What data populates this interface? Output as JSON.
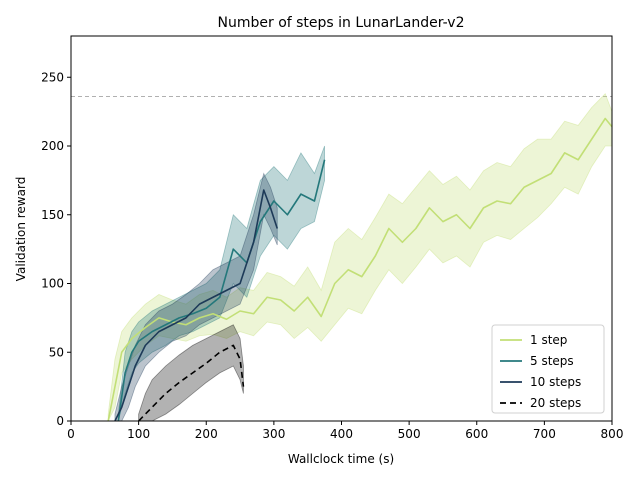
{
  "chart_data": {
    "type": "line",
    "title": "Number of steps in LunarLander-v2",
    "xlabel": "Wallclock time (s)",
    "ylabel": "Validation reward",
    "xlim": [
      0,
      800
    ],
    "ylim": [
      0,
      280
    ],
    "xticks": [
      0,
      100,
      200,
      300,
      400,
      500,
      600,
      700,
      800
    ],
    "yticks": [
      0,
      50,
      100,
      150,
      200,
      250
    ],
    "reference_line": {
      "y": 236,
      "style": "dashed",
      "color": "#b0b0b0"
    },
    "legend_position": "lower-right",
    "series": [
      {
        "name": "1 step",
        "color": "#c2df76",
        "dash": "",
        "x": [
          55,
          65,
          75,
          90,
          110,
          130,
          150,
          170,
          190,
          210,
          230,
          250,
          270,
          290,
          310,
          330,
          350,
          370,
          390,
          410,
          430,
          450,
          470,
          490,
          510,
          530,
          550,
          570,
          590,
          610,
          630,
          650,
          670,
          690,
          710,
          730,
          750,
          770,
          790,
          800
        ],
        "y": [
          0,
          25,
          50,
          60,
          68,
          75,
          72,
          70,
          75,
          78,
          74,
          80,
          78,
          90,
          88,
          80,
          90,
          76,
          100,
          110,
          105,
          120,
          140,
          130,
          140,
          155,
          145,
          150,
          140,
          155,
          160,
          158,
          170,
          175,
          180,
          195,
          190,
          205,
          220,
          214
        ],
        "lo": [
          0,
          10,
          35,
          45,
          55,
          62,
          60,
          58,
          62,
          63,
          60,
          65,
          62,
          72,
          70,
          60,
          68,
          58,
          70,
          82,
          78,
          95,
          110,
          100,
          112,
          125,
          115,
          120,
          112,
          130,
          135,
          132,
          140,
          148,
          158,
          170,
          165,
          185,
          200,
          200
        ],
        "hi": [
          5,
          45,
          65,
          75,
          85,
          92,
          88,
          85,
          92,
          95,
          90,
          97,
          95,
          108,
          105,
          98,
          112,
          95,
          130,
          140,
          132,
          148,
          165,
          158,
          170,
          182,
          172,
          178,
          168,
          182,
          188,
          185,
          198,
          205,
          205,
          218,
          215,
          228,
          238,
          225
        ]
      },
      {
        "name": "5 steps",
        "color": "#24787b",
        "dash": "",
        "x": [
          70,
          80,
          90,
          100,
          120,
          140,
          160,
          180,
          200,
          220,
          240,
          260,
          280,
          300,
          320,
          340,
          360,
          375
        ],
        "y": [
          0,
          35,
          50,
          58,
          65,
          70,
          75,
          78,
          82,
          90,
          125,
          115,
          145,
          160,
          150,
          165,
          160,
          190
        ],
        "lo": [
          0,
          20,
          35,
          42,
          50,
          55,
          62,
          65,
          70,
          75,
          100,
          90,
          120,
          135,
          125,
          140,
          145,
          175
        ],
        "hi": [
          5,
          50,
          65,
          72,
          80,
          85,
          90,
          95,
          100,
          110,
          150,
          140,
          175,
          185,
          175,
          195,
          180,
          200
        ]
      },
      {
        "name": "10 steps",
        "color": "#1d3a58",
        "dash": "",
        "x": [
          65,
          75,
          85,
          95,
          110,
          130,
          150,
          170,
          190,
          210,
          230,
          250,
          270,
          285,
          295,
          305
        ],
        "y": [
          0,
          10,
          25,
          40,
          55,
          65,
          70,
          75,
          85,
          90,
          95,
          100,
          130,
          168,
          155,
          140
        ],
        "lo": [
          0,
          0,
          10,
          25,
          40,
          50,
          58,
          62,
          70,
          75,
          80,
          85,
          110,
          150,
          140,
          128
        ],
        "hi": [
          5,
          25,
          40,
          55,
          70,
          80,
          85,
          92,
          100,
          110,
          115,
          120,
          150,
          180,
          170,
          155
        ]
      },
      {
        "name": "20 steps",
        "color": "#000000",
        "dash": "6,4",
        "x": [
          100,
          110,
          120,
          140,
          160,
          180,
          200,
          220,
          240,
          250,
          255
        ],
        "y": [
          0,
          5,
          10,
          20,
          28,
          35,
          42,
          50,
          55,
          45,
          25
        ],
        "lo": [
          0,
          0,
          0,
          5,
          12,
          20,
          28,
          35,
          40,
          30,
          20
        ],
        "hi": [
          5,
          20,
          30,
          40,
          48,
          55,
          60,
          65,
          70,
          60,
          40
        ]
      }
    ]
  }
}
